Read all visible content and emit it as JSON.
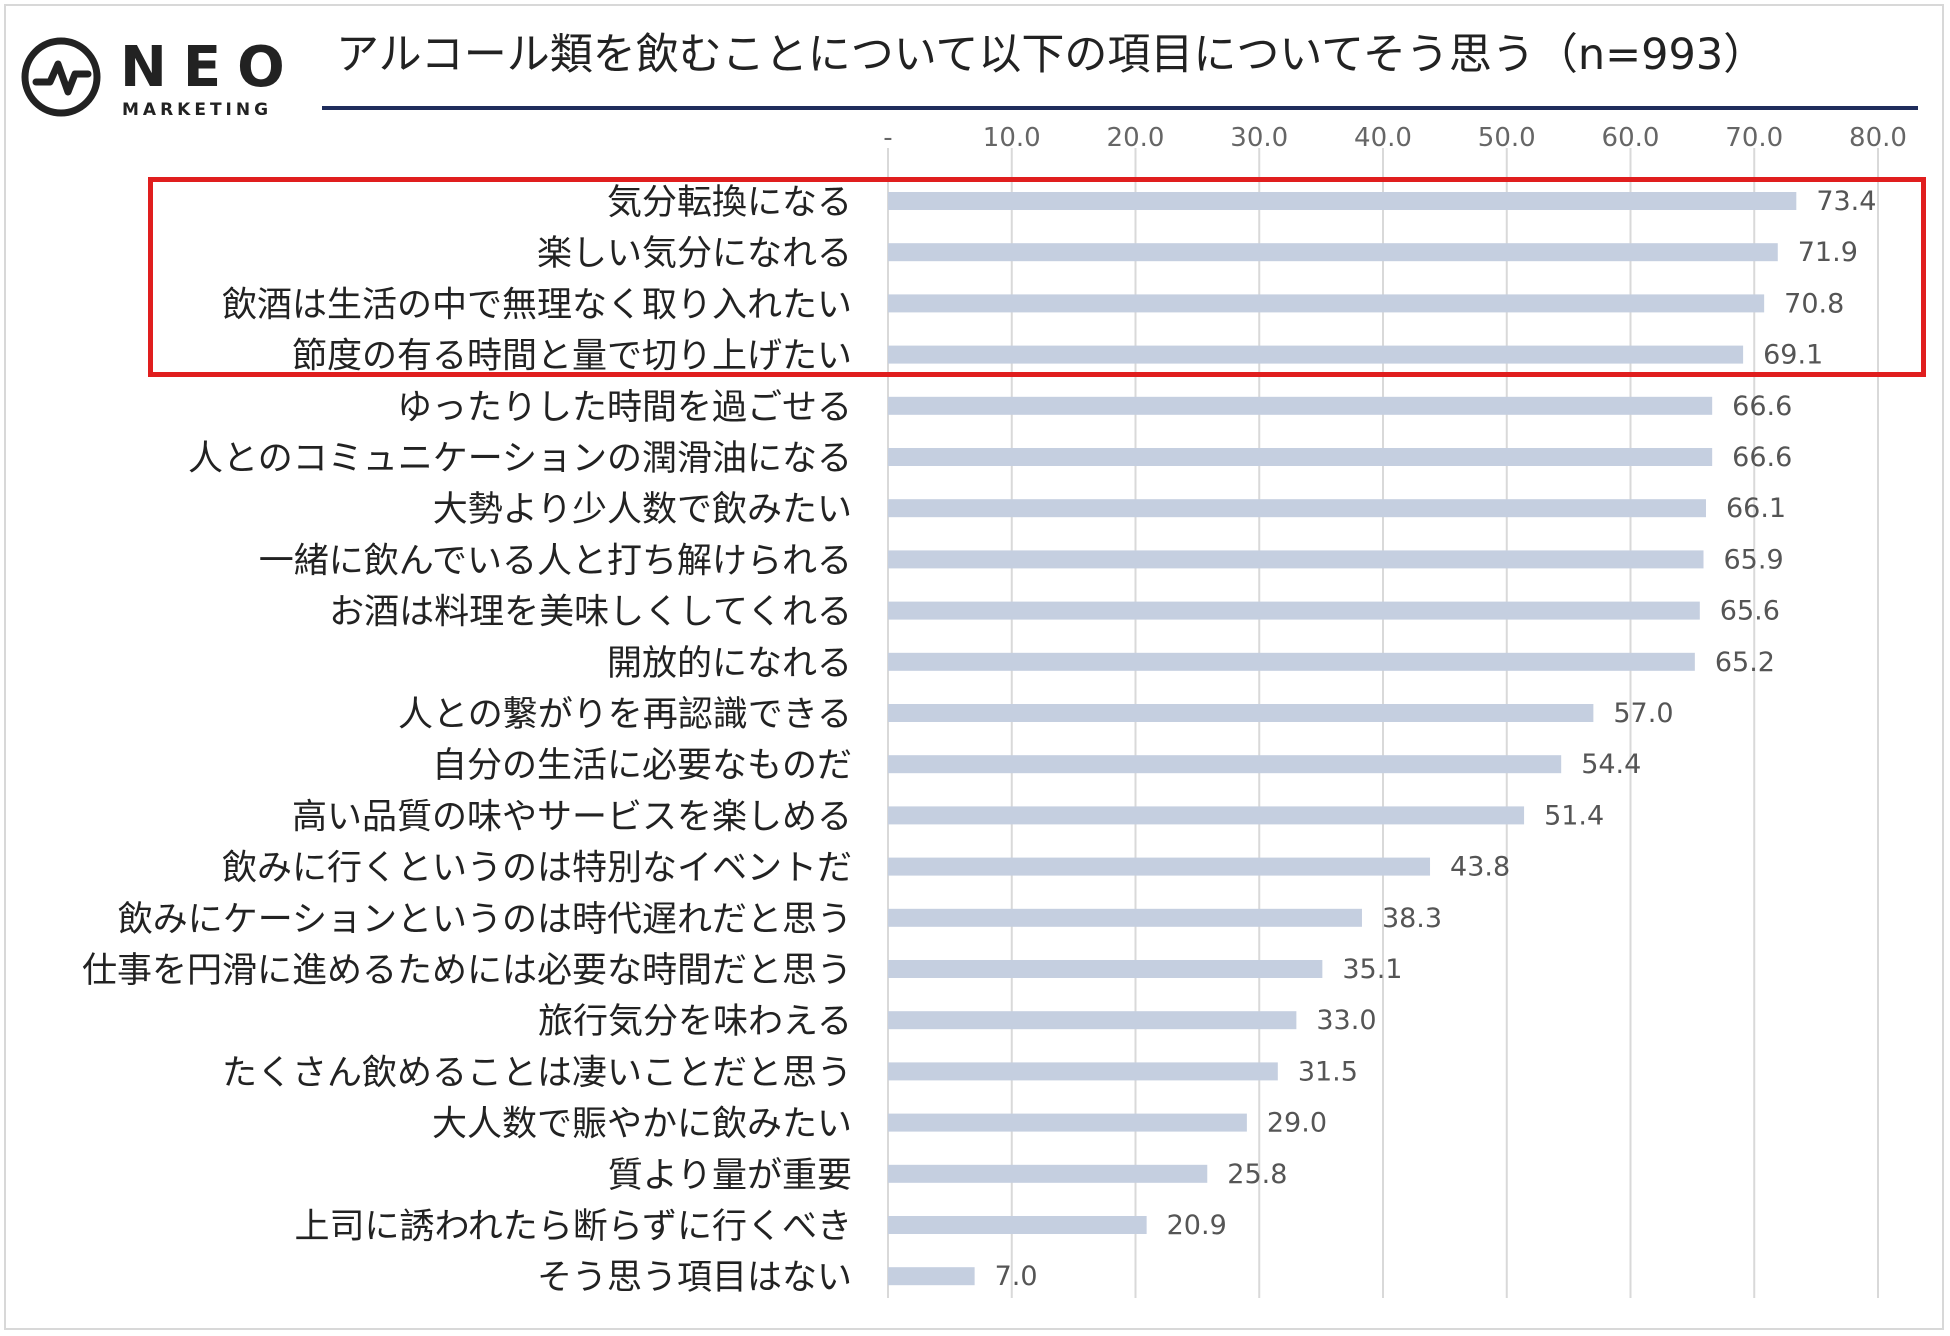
{
  "logo": {
    "word": "NEO",
    "sub": "MARKETING"
  },
  "title": "アルコール類を飲むことについて以下の項目についてそう思う（n=993）",
  "colors": {
    "bar": "#c5cfe0",
    "highlight": "#e01e1e",
    "rule": "#1f2d5c",
    "label": "#222222",
    "value": "#555555",
    "grid": "#d9d9d9"
  },
  "chart_data": {
    "type": "bar",
    "orientation": "horizontal",
    "title": "アルコール類を飲むことについて以下の項目についてそう思う（n=993）",
    "xlim": [
      0,
      80
    ],
    "ticks": [
      "-",
      "10.0",
      "20.0",
      "30.0",
      "40.0",
      "50.0",
      "60.0",
      "70.0",
      "80.0"
    ],
    "grid": true,
    "categories": [
      "気分転換になる",
      "楽しい気分になれる",
      "飲酒は生活の中で無理なく取り入れたい",
      "節度の有る時間と量で切り上げたい",
      "ゆったりした時間を過ごせる",
      "人とのコミュニケーションの潤滑油になる",
      "大勢より少人数で飲みたい",
      "一緒に飲んでいる人と打ち解けられる",
      "お酒は料理を美味しくしてくれる",
      "開放的になれる",
      "人との繋がりを再認識できる",
      "自分の生活に必要なものだ",
      "高い品質の味やサービスを楽しめる",
      "飲みに行くというのは特別なイベントだ",
      "飲みにケーションというのは時代遅れだと思う",
      "仕事を円滑に進めるためには必要な時間だと思う",
      "旅行気分を味わえる",
      "たくさん飲めることは凄いことだと思う",
      "大人数で賑やかに飲みたい",
      "質より量が重要",
      "上司に誘われたら断らずに行くべき",
      "そう思う項目はない"
    ],
    "values": [
      73.4,
      71.9,
      70.8,
      69.1,
      66.6,
      66.6,
      66.1,
      65.9,
      65.6,
      65.2,
      57.0,
      54.4,
      51.4,
      43.8,
      38.3,
      35.1,
      33.0,
      31.5,
      29.0,
      25.8,
      20.9,
      7.0
    ],
    "value_labels": [
      "73.4",
      "71.9",
      "70.8",
      "69.1",
      "66.6",
      "66.6",
      "66.1",
      "65.9",
      "65.6",
      "65.2",
      "57.0",
      "54.4",
      "51.4",
      "43.8",
      "38.3",
      "35.1",
      "33.0",
      "31.5",
      "29.0",
      "25.8",
      "20.9",
      "7.0"
    ],
    "highlighted_categories": [
      "気分転換になる",
      "楽しい気分になれる",
      "飲酒は生活の中で無理なく取り入れたい",
      "節度の有る時間と量で切り上げたい"
    ]
  }
}
